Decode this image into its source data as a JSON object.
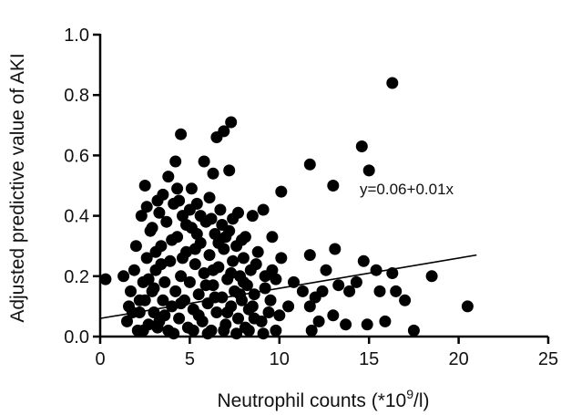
{
  "chart_data": {
    "type": "scatter",
    "title": "",
    "xlabel_main": "Neutrophil counts (*10",
    "xlabel_sup": "9",
    "xlabel_tail": "/l)",
    "ylabel": "Adjusted predictive value of AKI",
    "xlim": [
      0,
      25
    ],
    "ylim": [
      0,
      1.0
    ],
    "x_ticks": [
      0,
      5,
      10,
      15,
      20,
      25
    ],
    "y_ticks": [
      0.0,
      0.2,
      0.4,
      0.6,
      0.8,
      1.0
    ],
    "x_tick_labels": [
      "0",
      "5",
      "10",
      "15",
      "20",
      "25"
    ],
    "y_tick_labels": [
      "0.0",
      "0.2",
      "0.4",
      "0.6",
      "0.8",
      "1.0"
    ],
    "grid": false,
    "marker_color": "#000000",
    "regression": {
      "label": "y=0.06+0.01x",
      "intercept": 0.06,
      "slope": 0.01,
      "x_range": [
        0,
        21
      ]
    },
    "points": [
      [
        16.3,
        0.84
      ],
      [
        7.3,
        0.71
      ],
      [
        6.9,
        0.68
      ],
      [
        6.5,
        0.66
      ],
      [
        4.5,
        0.67
      ],
      [
        11.7,
        0.57
      ],
      [
        14.6,
        0.63
      ],
      [
        15.0,
        0.55
      ],
      [
        4.2,
        0.58
      ],
      [
        5.8,
        0.58
      ],
      [
        7.2,
        0.55
      ],
      [
        6.3,
        0.54
      ],
      [
        3.8,
        0.53
      ],
      [
        2.5,
        0.5
      ],
      [
        5.1,
        0.49
      ],
      [
        13.0,
        0.5
      ],
      [
        10.1,
        0.48
      ],
      [
        9.1,
        0.42
      ],
      [
        8.5,
        0.4
      ],
      [
        7.7,
        0.41
      ],
      [
        7.9,
        0.32
      ],
      [
        9.6,
        0.33
      ],
      [
        10.1,
        0.26
      ],
      [
        11.7,
        0.27
      ],
      [
        13.1,
        0.29
      ],
      [
        12.6,
        0.22
      ],
      [
        14.7,
        0.25
      ],
      [
        15.4,
        0.22
      ],
      [
        16.3,
        0.21
      ],
      [
        18.5,
        0.2
      ],
      [
        16.5,
        0.15
      ],
      [
        15.6,
        0.15
      ],
      [
        14.3,
        0.18
      ],
      [
        13.9,
        0.15
      ],
      [
        13.3,
        0.17
      ],
      [
        12.4,
        0.15
      ],
      [
        12.0,
        0.13
      ],
      [
        11.3,
        0.15
      ],
      [
        10.8,
        0.18
      ],
      [
        9.8,
        0.19
      ],
      [
        9.2,
        0.16
      ],
      [
        9.5,
        0.12
      ],
      [
        10.5,
        0.1
      ],
      [
        11.7,
        0.1
      ],
      [
        13.0,
        0.07
      ],
      [
        13.7,
        0.04
      ],
      [
        14.9,
        0.04
      ],
      [
        15.9,
        0.05
      ],
      [
        17.0,
        0.12
      ],
      [
        17.5,
        0.02
      ],
      [
        20.5,
        0.1
      ],
      [
        12.2,
        0.05
      ],
      [
        11.8,
        0.02
      ],
      [
        10.0,
        0.07
      ],
      [
        8.6,
        0.06
      ],
      [
        0.3,
        0.19
      ],
      [
        1.3,
        0.2
      ],
      [
        1.5,
        0.05
      ],
      [
        1.6,
        0.1
      ],
      [
        1.7,
        0.15
      ],
      [
        1.9,
        0.22
      ],
      [
        2.0,
        0.3
      ],
      [
        2.1,
        0.02
      ],
      [
        2.2,
        0.08
      ],
      [
        2.3,
        0.4
      ],
      [
        2.4,
        0.18
      ],
      [
        2.5,
        0.12
      ],
      [
        2.6,
        0.26
      ],
      [
        2.7,
        0.04
      ],
      [
        2.8,
        0.35
      ],
      [
        2.9,
        0.15
      ],
      [
        3.0,
        0.08
      ],
      [
        3.1,
        0.22
      ],
      [
        3.2,
        0.45
      ],
      [
        3.3,
        0.05
      ],
      [
        3.4,
        0.3
      ],
      [
        3.5,
        0.12
      ],
      [
        3.6,
        0.18
      ],
      [
        3.7,
        0.38
      ],
      [
        3.8,
        0.02
      ],
      [
        3.9,
        0.25
      ],
      [
        4.0,
        0.1
      ],
      [
        4.1,
        0.44
      ],
      [
        4.2,
        0.15
      ],
      [
        4.3,
        0.33
      ],
      [
        4.4,
        0.06
      ],
      [
        4.5,
        0.2
      ],
      [
        4.6,
        0.4
      ],
      [
        4.7,
        0.12
      ],
      [
        4.8,
        0.28
      ],
      [
        4.9,
        0.03
      ],
      [
        5.0,
        0.18
      ],
      [
        5.1,
        0.36
      ],
      [
        5.2,
        0.09
      ],
      [
        5.3,
        0.24
      ],
      [
        5.4,
        0.44
      ],
      [
        5.5,
        0.14
      ],
      [
        5.6,
        0.31
      ],
      [
        5.7,
        0.05
      ],
      [
        5.8,
        0.21
      ],
      [
        5.9,
        0.38
      ],
      [
        6.0,
        0.11
      ],
      [
        6.1,
        0.27
      ],
      [
        6.2,
        0.02
      ],
      [
        6.3,
        0.17
      ],
      [
        6.4,
        0.34
      ],
      [
        6.5,
        0.08
      ],
      [
        6.6,
        0.23
      ],
      [
        6.7,
        0.42
      ],
      [
        6.8,
        0.13
      ],
      [
        6.9,
        0.29
      ],
      [
        7.0,
        0.04
      ],
      [
        7.1,
        0.19
      ],
      [
        7.2,
        0.35
      ],
      [
        7.3,
        0.1
      ],
      [
        7.4,
        0.25
      ],
      [
        7.5,
        0.15
      ],
      [
        7.6,
        0.3
      ],
      [
        7.7,
        0.06
      ],
      [
        7.8,
        0.2
      ],
      [
        7.9,
        0.12
      ],
      [
        8.0,
        0.26
      ],
      [
        8.1,
        0.03
      ],
      [
        8.2,
        0.17
      ],
      [
        8.3,
        0.09
      ],
      [
        8.4,
        0.22
      ],
      [
        8.6,
        0.14
      ],
      [
        8.8,
        0.28
      ],
      [
        9.0,
        0.05
      ],
      [
        9.2,
        0.2
      ],
      [
        2.6,
        0.43
      ],
      [
        3.5,
        0.47
      ],
      [
        4.3,
        0.49
      ],
      [
        5.0,
        0.42
      ],
      [
        6.1,
        0.46
      ],
      [
        2.9,
        0.36
      ],
      [
        4.8,
        0.37
      ],
      [
        5.6,
        0.4
      ],
      [
        6.8,
        0.37
      ],
      [
        7.4,
        0.39
      ],
      [
        3.1,
        0.28
      ],
      [
        4.0,
        0.32
      ],
      [
        5.3,
        0.29
      ],
      [
        6.6,
        0.31
      ],
      [
        8.1,
        0.33
      ],
      [
        2.2,
        0.12
      ],
      [
        3.0,
        0.16
      ],
      [
        3.6,
        0.07
      ],
      [
        4.5,
        0.11
      ],
      [
        5.5,
        0.07
      ],
      [
        6.4,
        0.13
      ],
      [
        7.1,
        0.08
      ],
      [
        7.8,
        0.14
      ],
      [
        8.5,
        0.1
      ],
      [
        9.4,
        0.08
      ],
      [
        2.4,
        0.02
      ],
      [
        3.2,
        0.03
      ],
      [
        4.1,
        0.01
      ],
      [
        5.2,
        0.02
      ],
      [
        6.0,
        0.01
      ],
      [
        6.9,
        0.02
      ],
      [
        7.6,
        0.01
      ],
      [
        8.3,
        0.02
      ],
      [
        9.1,
        0.01
      ],
      [
        9.8,
        0.02
      ],
      [
        1.8,
        0.08
      ],
      [
        2.7,
        0.19
      ],
      [
        3.4,
        0.24
      ],
      [
        4.6,
        0.26
      ],
      [
        5.9,
        0.17
      ],
      [
        6.3,
        0.22
      ],
      [
        7.3,
        0.21
      ],
      [
        8.0,
        0.18
      ],
      [
        8.7,
        0.24
      ],
      [
        9.6,
        0.22
      ],
      [
        3.3,
        0.41
      ],
      [
        4.4,
        0.45
      ],
      [
        5.4,
        0.34
      ],
      [
        6.2,
        0.39
      ],
      [
        7.0,
        0.33
      ]
    ]
  }
}
